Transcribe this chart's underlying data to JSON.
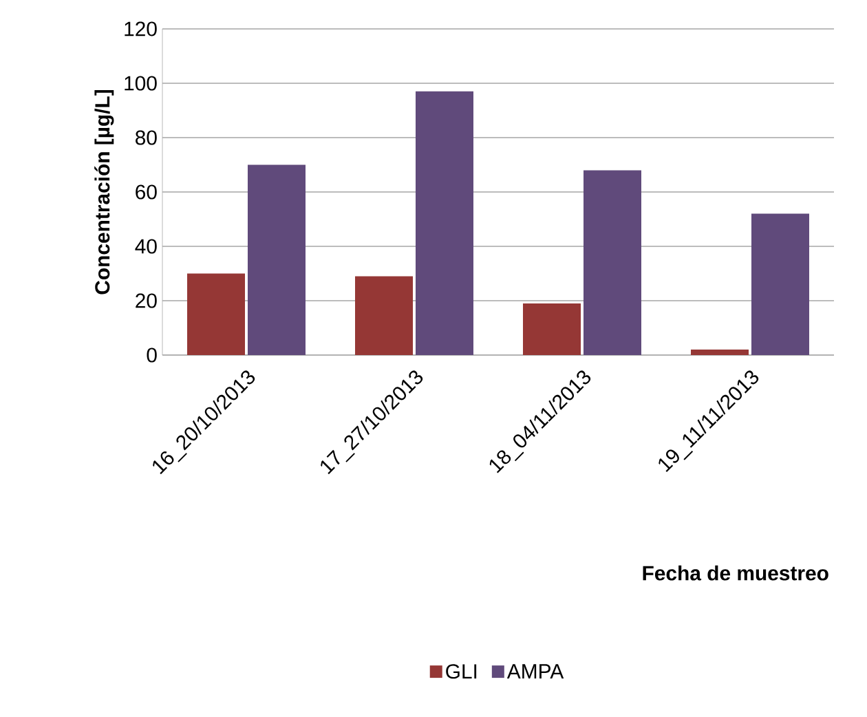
{
  "chart_data": {
    "type": "bar",
    "xlabel": "Fecha de muestreo",
    "ylabel": "Concentración [µg/L]",
    "categories": [
      "16_20/10/2013",
      "17_27/10/2013",
      "18_04/11/2013",
      "19_11/11/2013"
    ],
    "series": [
      {
        "name": "GLI",
        "color": "#953735",
        "values": [
          30,
          29,
          19,
          2
        ]
      },
      {
        "name": "AMPA",
        "color": "#604a7b",
        "values": [
          70,
          97,
          68,
          52
        ]
      }
    ],
    "ylim": [
      0,
      120
    ],
    "yticks": [
      0,
      20,
      40,
      60,
      80,
      100,
      120
    ],
    "grid": "y",
    "legend": "bottom"
  }
}
